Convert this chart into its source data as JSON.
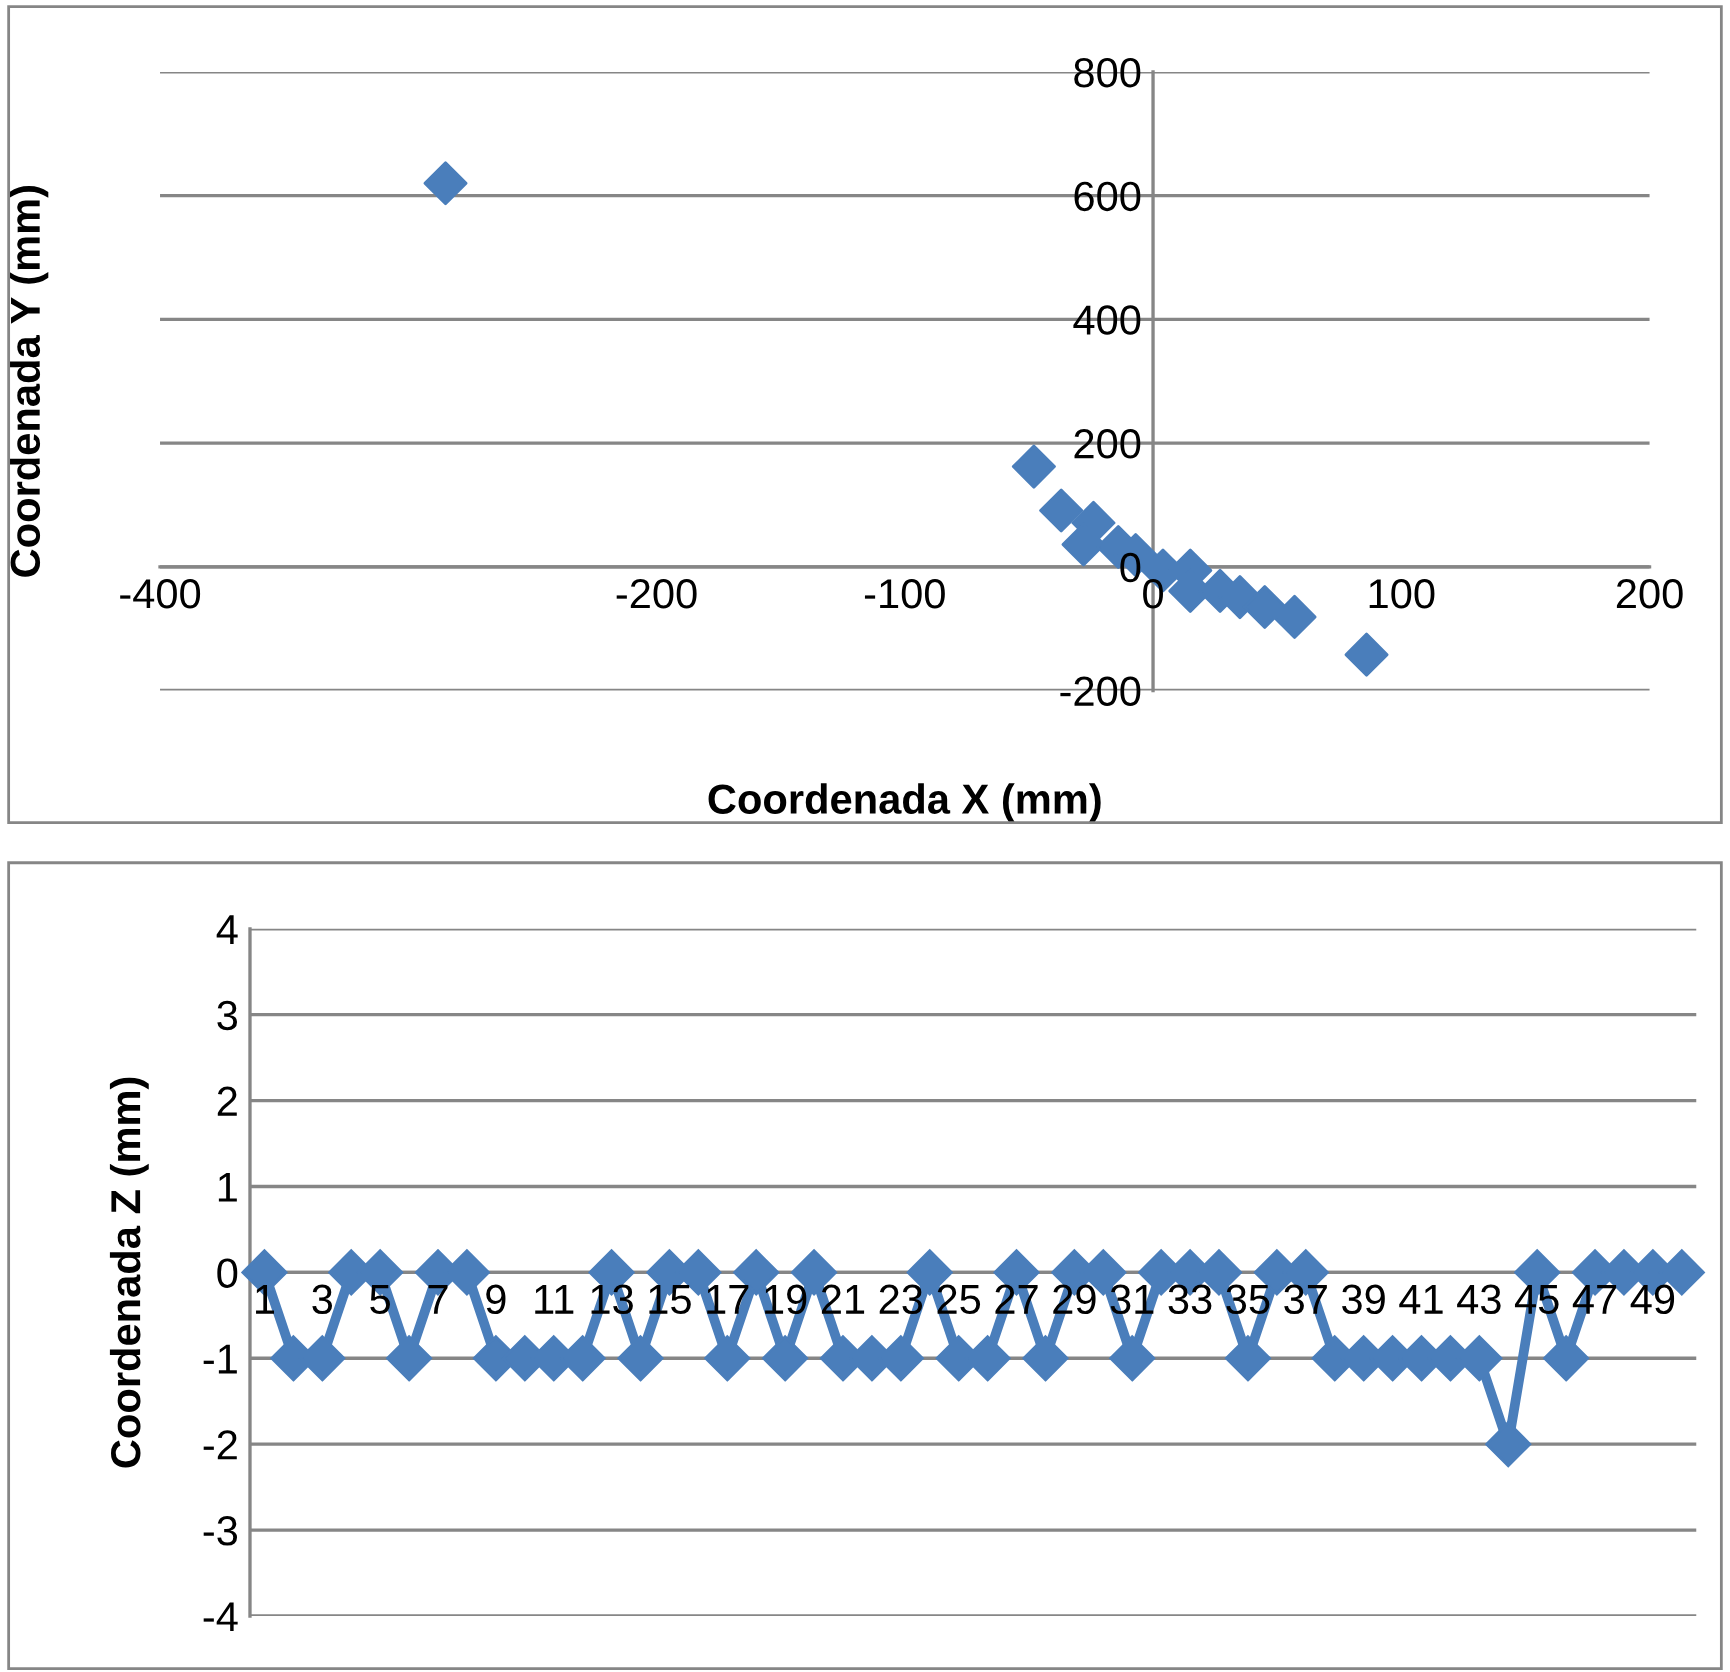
{
  "chart_data": [
    {
      "type": "scatter",
      "xlabel": "Coordenada X (mm)",
      "ylabel": "Coordenada Y (mm)",
      "xlim": [
        -400,
        200
      ],
      "ylim": [
        -200,
        800
      ],
      "xticks": [
        -400,
        -200,
        -100,
        0,
        100,
        200
      ],
      "yticks": [
        -200,
        0,
        200,
        400,
        600,
        800
      ],
      "grid": "y",
      "marker": "diamond",
      "legend": false,
      "series": [
        {
          "color": "#4a7ebb",
          "x": [
            -285,
            -48,
            -37,
            -24,
            -28,
            -14,
            -7,
            4,
            15,
            15,
            27,
            35,
            45,
            57,
            86
          ],
          "values": [
            620,
            162,
            91,
            71,
            36,
            32,
            19,
            -6,
            -6,
            -39,
            -39,
            -49,
            -65,
            -81,
            -142
          ]
        }
      ]
    },
    {
      "type": "line",
      "ylabel": "Coordenada Z (mm)",
      "ylim": [
        -4,
        4
      ],
      "yticks": [
        -4,
        -3,
        -2,
        -1,
        0,
        1,
        2,
        3,
        4
      ],
      "grid": "y",
      "marker": "diamond",
      "line_style": "solid",
      "legend": false,
      "categories": [
        "1",
        null,
        "3",
        null,
        "5",
        null,
        "7",
        null,
        "9",
        null,
        "11",
        null,
        "13",
        null,
        "15",
        null,
        "17",
        null,
        "19",
        null,
        "21",
        null,
        "23",
        null,
        "25",
        null,
        "27",
        null,
        "29",
        null,
        "31",
        null,
        "33",
        null,
        "35",
        null,
        "37",
        null,
        "39",
        null,
        "41",
        null,
        "43",
        null,
        "45",
        null,
        "47",
        null,
        "49",
        null
      ],
      "series": [
        {
          "color": "#4a7ebb",
          "values": [
            0,
            -1,
            -1,
            0,
            0,
            -1,
            0,
            0,
            -1,
            -1,
            -1,
            -1,
            0,
            -1,
            0,
            0,
            -1,
            0,
            -1,
            0,
            -1,
            -1,
            -1,
            0,
            -1,
            -1,
            0,
            -1,
            0,
            0,
            -1,
            0,
            0,
            0,
            -1,
            0,
            0,
            -1,
            -1,
            -1,
            -1,
            -1,
            -1,
            -2,
            0,
            -1,
            0,
            0,
            0,
            0
          ]
        }
      ]
    }
  ]
}
